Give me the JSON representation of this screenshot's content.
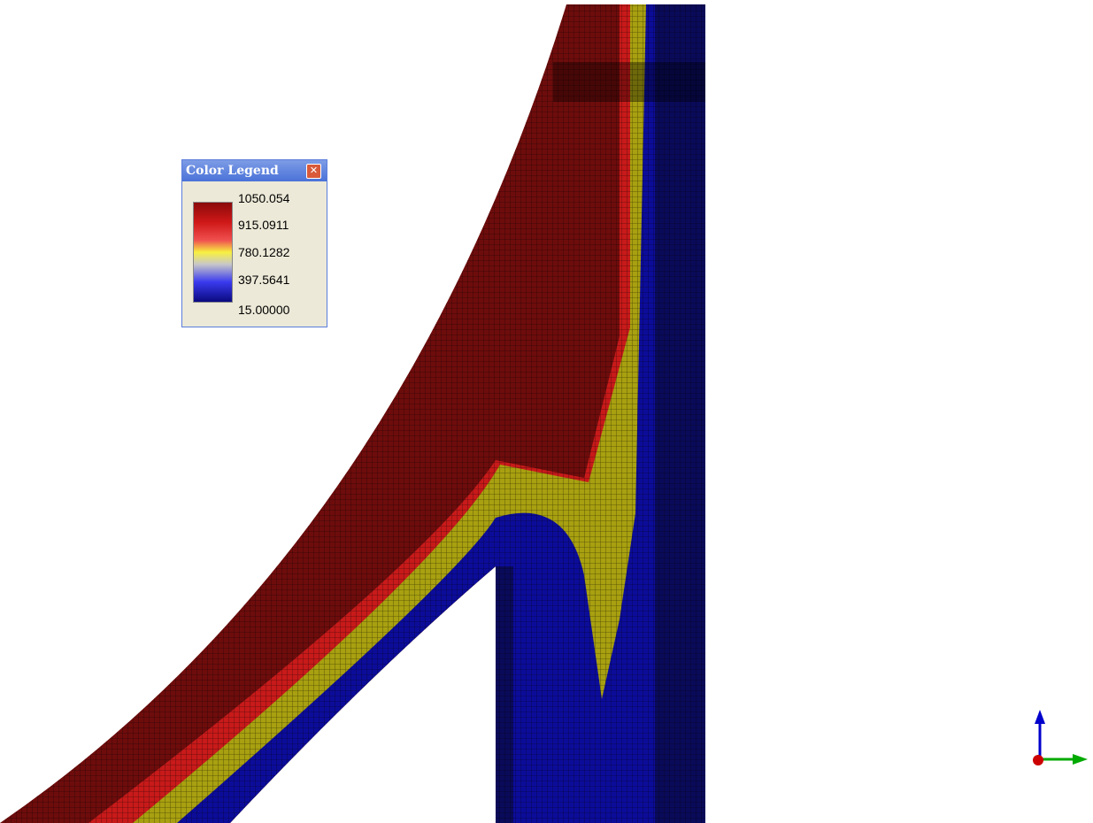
{
  "legend": {
    "title": "Color Legend",
    "labels": [
      "1050.054",
      "915.0911",
      "780.1282",
      "397.5641",
      "15.00000"
    ]
  }
}
